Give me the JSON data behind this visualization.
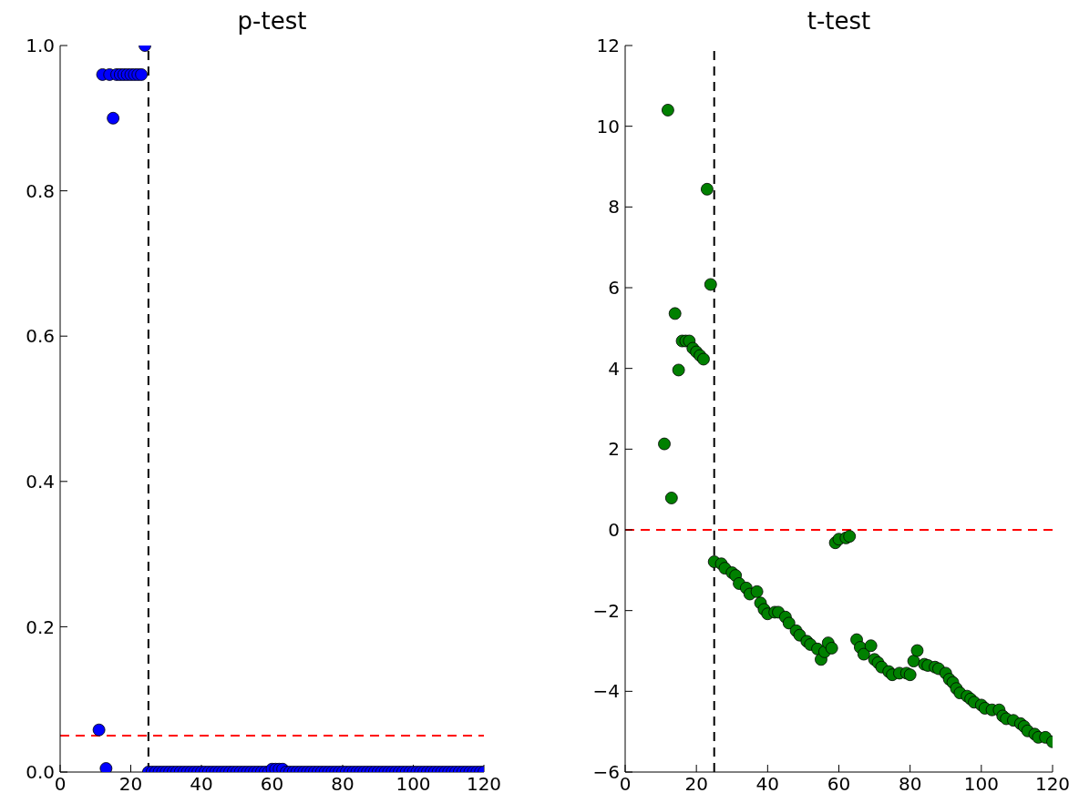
{
  "chart_data": [
    {
      "type": "scatter",
      "title": "p-test",
      "marker": "circle",
      "xlim": [
        0,
        120
      ],
      "ylim": [
        0,
        1
      ],
      "xticks": [
        0,
        20,
        40,
        60,
        80,
        100,
        120
      ],
      "yticks": [
        {
          "value": 0,
          "label": "0.0"
        },
        0.2,
        0.4,
        0.6,
        0.8,
        {
          "value": 1,
          "label": "1.0"
        }
      ],
      "x": [
        11,
        12,
        13,
        14,
        15,
        16,
        17,
        18,
        19,
        20,
        21,
        22,
        23,
        24,
        25,
        26,
        27,
        28,
        29,
        30,
        31,
        32,
        33,
        34,
        35,
        36,
        37,
        38,
        39,
        40,
        41,
        42,
        43,
        44,
        45,
        46,
        47,
        48,
        49,
        50,
        51,
        52,
        53,
        54,
        55,
        56,
        57,
        58,
        59,
        60,
        61,
        62,
        63,
        64,
        65,
        66,
        67,
        68,
        69,
        70,
        71,
        72,
        73,
        74,
        75,
        76,
        77,
        78,
        79,
        80,
        81,
        82,
        83,
        84,
        85,
        86,
        87,
        88,
        89,
        90,
        91,
        92,
        93,
        94,
        95,
        96,
        97,
        98,
        99,
        100,
        101,
        102,
        103,
        104,
        105,
        106,
        107,
        108,
        109,
        110,
        111,
        112,
        113,
        114,
        115,
        116,
        117,
        118,
        119,
        120
      ],
      "series": [
        {
          "color": "#0000ff",
          "values": [
            0.058,
            0.96,
            0.005,
            0.96,
            0.9,
            0.96,
            0.96,
            0.96,
            0.96,
            0.96,
            0.96,
            0.96,
            0.96,
            1.0,
            0,
            0,
            0,
            0,
            0,
            0,
            0,
            0,
            0,
            0,
            0,
            0,
            0,
            0,
            0,
            0,
            0,
            0,
            0,
            0,
            0,
            0,
            0,
            0,
            0,
            0,
            0,
            0,
            0,
            0,
            0,
            0,
            0,
            0,
            0,
            0.004,
            0.004,
            0.004,
            0.004,
            0,
            0,
            0,
            0,
            0,
            0,
            0,
            0,
            0,
            0,
            0,
            0,
            0,
            0,
            0,
            0,
            0,
            0,
            0,
            0,
            0,
            0,
            0,
            0,
            0,
            0,
            0,
            0,
            0,
            0,
            0,
            0,
            0,
            0,
            0,
            0,
            0,
            0,
            0,
            0,
            0,
            0,
            0,
            0,
            0,
            0,
            0,
            0,
            0,
            0,
            0,
            0,
            0,
            0,
            0,
            0,
            0
          ]
        }
      ],
      "ref_lines": [
        {
          "axis": "x",
          "value": 25,
          "color": "#000000",
          "line_style": "dashed"
        },
        {
          "axis": "y",
          "value": 0.05,
          "color": "#ff0000",
          "line_style": "dashed"
        }
      ]
    },
    {
      "type": "scatter",
      "title": "t-test",
      "marker": "circle",
      "xlim": [
        0,
        120
      ],
      "ylim": [
        -6,
        12
      ],
      "xticks": [
        0,
        20,
        40,
        60,
        80,
        100,
        120
      ],
      "yticks": [
        {
          "value": -6,
          "label": "−6"
        },
        {
          "value": -4,
          "label": "−4"
        },
        {
          "value": -2,
          "label": "−2"
        },
        0,
        2,
        4,
        6,
        8,
        10,
        12
      ],
      "x": [
        11,
        12,
        13,
        14,
        15,
        16,
        17,
        18,
        19,
        20,
        21,
        22,
        23,
        24,
        25,
        27,
        28,
        30,
        31,
        32,
        34,
        35,
        37,
        38,
        39,
        40,
        42,
        43,
        45,
        46,
        48,
        49,
        51,
        52,
        54,
        55,
        56,
        57,
        58,
        59,
        60,
        62,
        63,
        65,
        66,
        67,
        69,
        70,
        71,
        72,
        74,
        75,
        77,
        79,
        80,
        81,
        82,
        84,
        85,
        87,
        88,
        90,
        91,
        92,
        93,
        94,
        96,
        97,
        98,
        100,
        101,
        103,
        105,
        106,
        107,
        109,
        111,
        112,
        113,
        115,
        116,
        118,
        120
      ],
      "series": [
        {
          "color": "#008000",
          "values": [
            2.13,
            10.4,
            0.79,
            5.36,
            3.96,
            4.68,
            4.68,
            4.68,
            4.5,
            4.41,
            4.32,
            4.23,
            8.44,
            6.08,
            -0.79,
            -0.84,
            -0.95,
            -1.06,
            -1.13,
            -1.33,
            -1.44,
            -1.59,
            -1.53,
            -1.81,
            -1.97,
            -2.08,
            -2.04,
            -2.04,
            -2.16,
            -2.31,
            -2.5,
            -2.61,
            -2.76,
            -2.84,
            -2.95,
            -3.21,
            -3.02,
            -2.8,
            -2.93,
            -0.32,
            -0.23,
            -0.2,
            -0.16,
            -2.72,
            -2.91,
            -3.08,
            -2.87,
            -3.21,
            -3.29,
            -3.4,
            -3.51,
            -3.59,
            -3.55,
            -3.55,
            -3.59,
            -3.25,
            -2.99,
            -3.33,
            -3.36,
            -3.4,
            -3.44,
            -3.55,
            -3.7,
            -3.78,
            -3.93,
            -4.04,
            -4.12,
            -4.19,
            -4.27,
            -4.34,
            -4.42,
            -4.46,
            -4.46,
            -4.61,
            -4.68,
            -4.72,
            -4.8,
            -4.87,
            -4.98,
            -5.06,
            -5.14,
            -5.14,
            -5.25
          ]
        }
      ],
      "ref_lines": [
        {
          "axis": "x",
          "value": 25,
          "color": "#000000",
          "line_style": "dashed"
        },
        {
          "axis": "y",
          "value": 0,
          "color": "#ff0000",
          "line_style": "dashed"
        }
      ]
    }
  ]
}
